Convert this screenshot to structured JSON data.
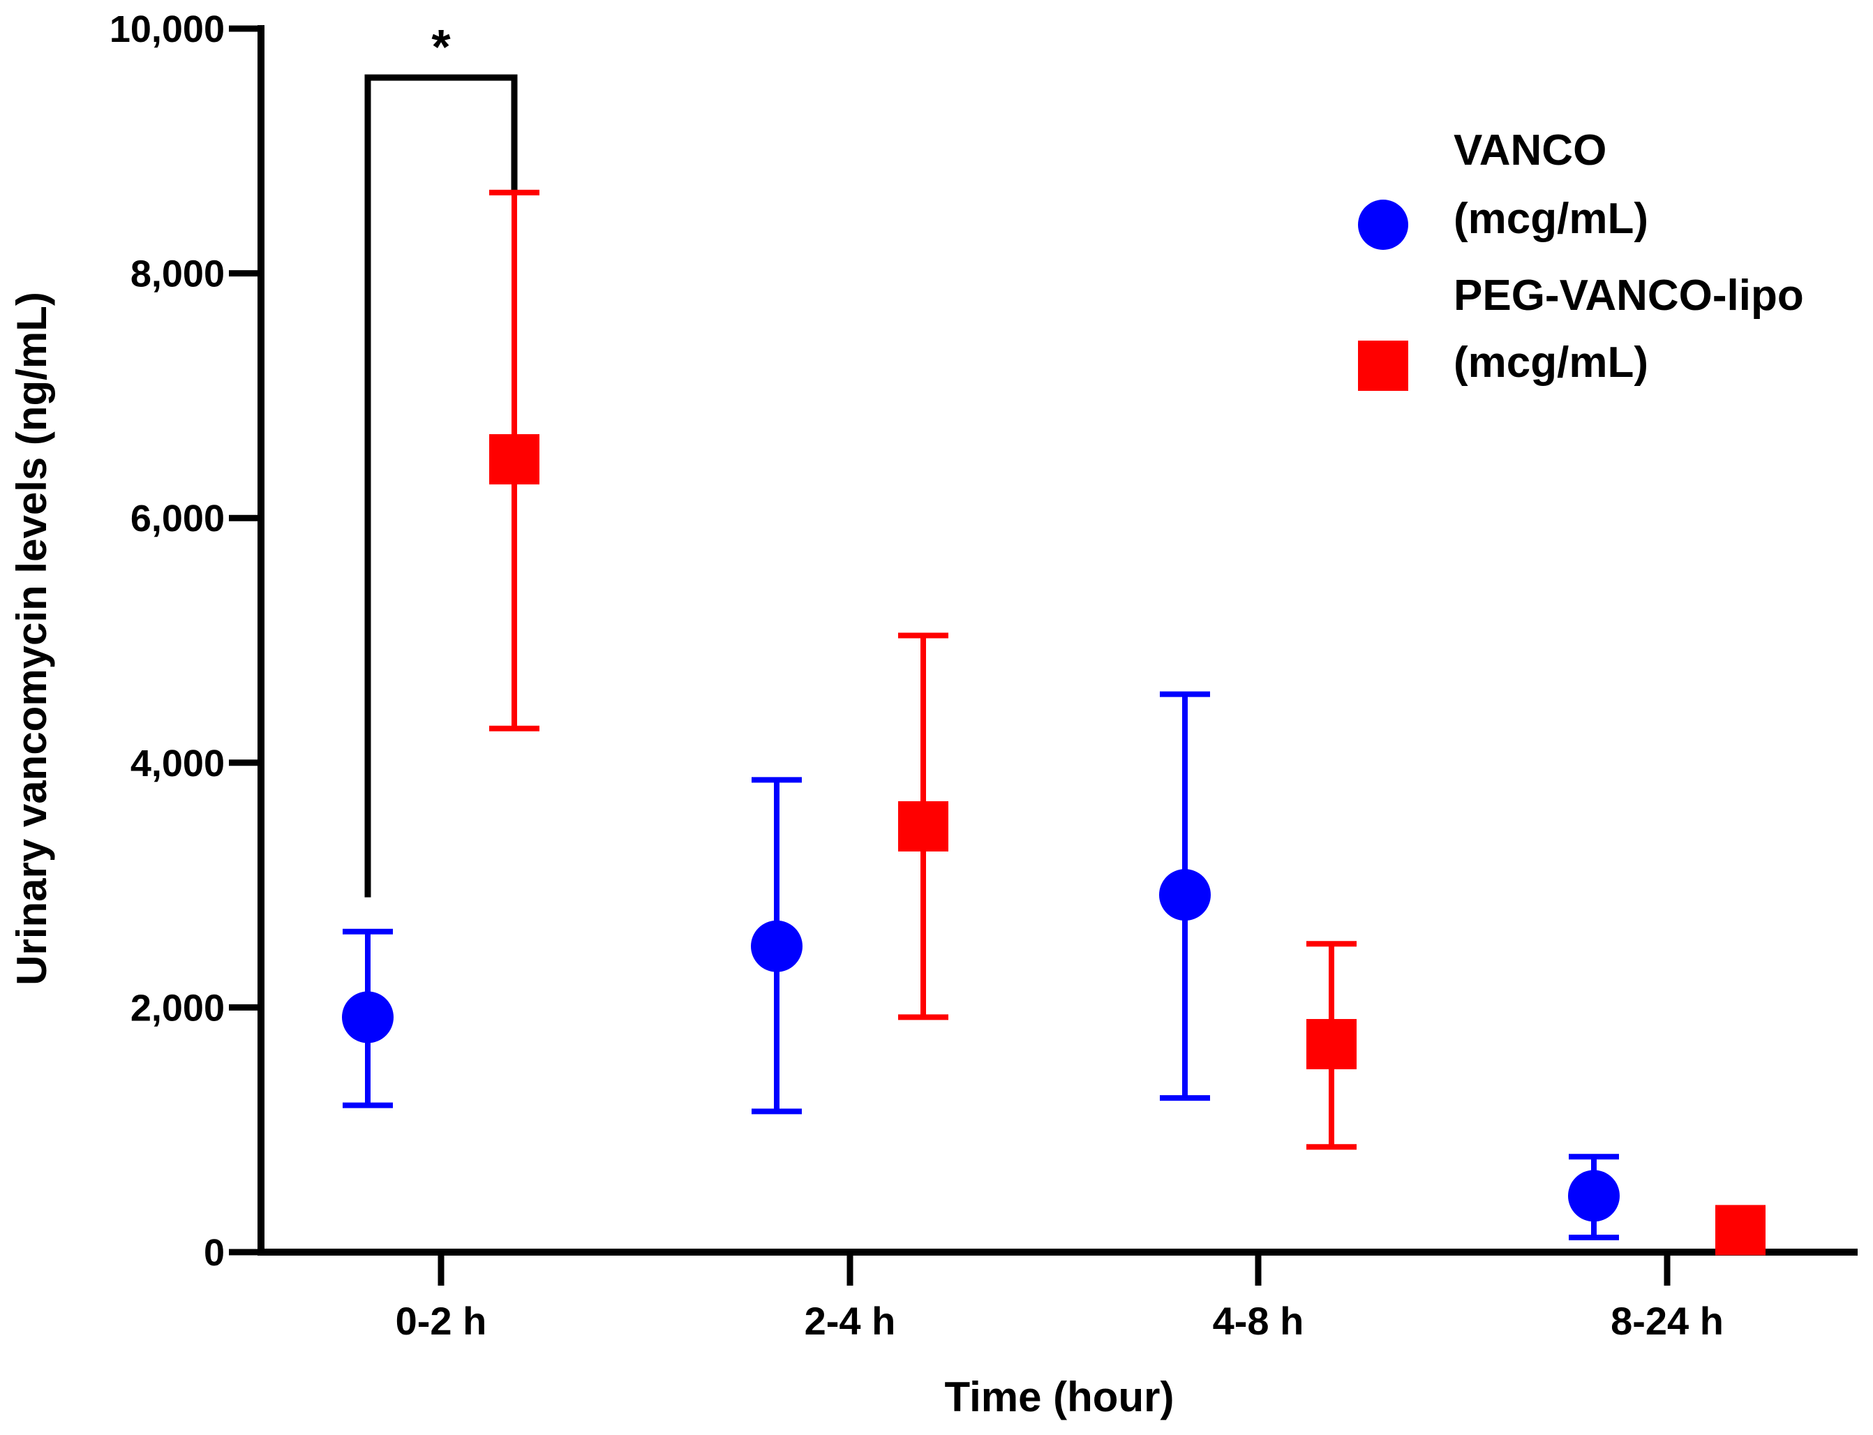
{
  "chart_data": {
    "type": "scatter",
    "title": "",
    "xlabel": "Time (hour)",
    "ylabel": "Urinary vancomycin levels (ng/mL)",
    "ylim": [
      0,
      10000
    ],
    "yticks": [
      0,
      2000,
      4000,
      6000,
      8000,
      10000
    ],
    "ytick_labels": [
      "0",
      "2,000",
      "4,000",
      "6,000",
      "8,000",
      "10,000"
    ],
    "categories": [
      "0-2 h",
      "2-4 h",
      "4-8 h",
      "8-24 h"
    ],
    "legend_position": "top-right",
    "series": [
      {
        "name": "VANCO",
        "unit": "(mcg/mL)",
        "color": "#0000ff",
        "marker": "circle",
        "values": [
          1920,
          2500,
          2920,
          460
        ],
        "err_low": [
          1200,
          1150,
          1260,
          120
        ],
        "err_high": [
          2620,
          3860,
          4560,
          780
        ]
      },
      {
        "name": "PEG-VANCO-lipo",
        "unit": "(mcg/mL)",
        "color": "#ff0000",
        "marker": "square",
        "values": [
          6480,
          3480,
          1700,
          180
        ],
        "err_low": [
          4280,
          1920,
          860,
          180
        ],
        "err_high": [
          8660,
          5040,
          2520,
          180
        ]
      }
    ],
    "annotations": [
      {
        "text": "*",
        "type": "significance-bracket",
        "category": "0-2 h",
        "left_y": 2900,
        "right_y": 8660,
        "top_y": 9600
      }
    ]
  }
}
